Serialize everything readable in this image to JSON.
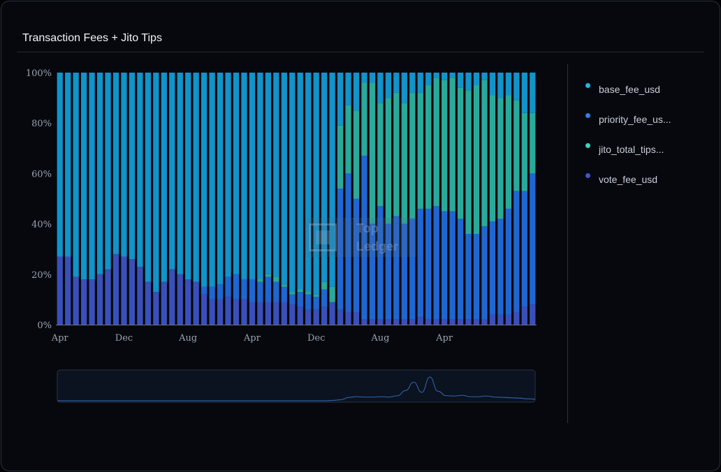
{
  "header": {
    "title": "Transaction Fees + Jito Tips"
  },
  "legend": {
    "items": [
      {
        "label": "base_fee_usd",
        "color": "#1fb6e6"
      },
      {
        "label": "priority_fee_us...",
        "color": "#2f7fe0"
      },
      {
        "label": "jito_total_tips...",
        "color": "#3fd0c0"
      },
      {
        "label": "vote_fee_usd",
        "color": "#3d57c8"
      }
    ]
  },
  "watermark": {
    "line1": "Top",
    "line2": "Ledger"
  },
  "chart_data": {
    "type": "bar",
    "stacked": true,
    "normalized": true,
    "ylim": [
      0,
      100
    ],
    "y_ticks": [
      "0%",
      "20%",
      "40%",
      "60%",
      "80%",
      "100%"
    ],
    "x_ticks": [
      {
        "label": "Apr",
        "index": 0
      },
      {
        "label": "Dec",
        "index": 8
      },
      {
        "label": "Aug",
        "index": 16
      },
      {
        "label": "Apr",
        "index": 24
      },
      {
        "label": "Dec",
        "index": 32
      },
      {
        "label": "Aug",
        "index": 40
      },
      {
        "label": "Apr",
        "index": 48
      }
    ],
    "series": [
      {
        "name": "vote_fee_usd",
        "color": "#3a4fb8",
        "values": [
          27,
          27,
          19,
          18,
          18,
          20,
          22,
          28,
          27,
          26,
          23,
          17,
          13,
          17,
          22,
          20,
          18,
          17,
          12,
          10,
          10,
          11,
          10,
          10,
          9,
          9,
          9,
          9,
          9,
          8,
          7,
          6,
          6,
          7,
          9,
          6,
          5,
          5,
          2,
          2,
          2,
          2,
          2,
          2,
          2,
          3,
          2,
          2,
          2,
          2,
          2,
          2,
          2,
          2,
          4,
          4,
          4,
          5,
          7,
          8
        ]
      },
      {
        "name": "priority_fee_usd",
        "color": "#1f66d1",
        "values": [
          0,
          0,
          0,
          0,
          0,
          0,
          0,
          0,
          0,
          0,
          0,
          0,
          0,
          0,
          0,
          0,
          0,
          0,
          3,
          5,
          6,
          8,
          10,
          8,
          9,
          8,
          10,
          8,
          6,
          4,
          6,
          6,
          5,
          7,
          0,
          48,
          55,
          45,
          65,
          38,
          45,
          38,
          41,
          38,
          40,
          43,
          44,
          45,
          43,
          43,
          40,
          34,
          34,
          37,
          37,
          38,
          42,
          48,
          46,
          52
        ]
      },
      {
        "name": "jito_total_tips",
        "color": "#2aa99a",
        "values": [
          0,
          0,
          0,
          0,
          0,
          0,
          0,
          0,
          0,
          0,
          0,
          0,
          0,
          0,
          0,
          0,
          0,
          0,
          0,
          0,
          0,
          0,
          0,
          0,
          0,
          1,
          1,
          2,
          1,
          1,
          1,
          1,
          1,
          3,
          6,
          25,
          27,
          35,
          29,
          56,
          41,
          50,
          49,
          48,
          50,
          46,
          49,
          51,
          52,
          53,
          52,
          57,
          59,
          58,
          50,
          48,
          45,
          36,
          31,
          24
        ]
      },
      {
        "name": "base_fee_usd",
        "color": "#1293c9",
        "values": [
          73,
          73,
          81,
          82,
          82,
          80,
          78,
          72,
          73,
          74,
          77,
          83,
          87,
          83,
          78,
          80,
          82,
          83,
          85,
          85,
          84,
          81,
          80,
          82,
          82,
          82,
          80,
          81,
          84,
          87,
          86,
          87,
          88,
          83,
          85,
          21,
          13,
          15,
          4,
          4,
          12,
          10,
          8,
          12,
          8,
          8,
          5,
          2,
          3,
          2,
          6,
          7,
          5,
          3,
          9,
          10,
          9,
          11,
          16,
          16
        ]
      }
    ],
    "navigator": {
      "type": "line",
      "values": [
        0,
        0,
        0,
        0,
        0,
        0,
        0,
        0,
        0,
        0,
        0,
        0,
        0,
        0,
        0,
        0,
        0,
        0,
        0,
        0,
        0,
        0,
        0,
        0,
        0,
        0,
        0,
        0,
        0,
        0,
        0,
        0,
        0,
        0,
        1,
        3,
        10,
        12,
        11,
        11,
        12,
        11,
        15,
        30,
        55,
        25,
        70,
        28,
        15,
        14,
        16,
        12,
        12,
        14,
        11,
        10,
        9,
        8,
        6,
        5
      ]
    }
  }
}
